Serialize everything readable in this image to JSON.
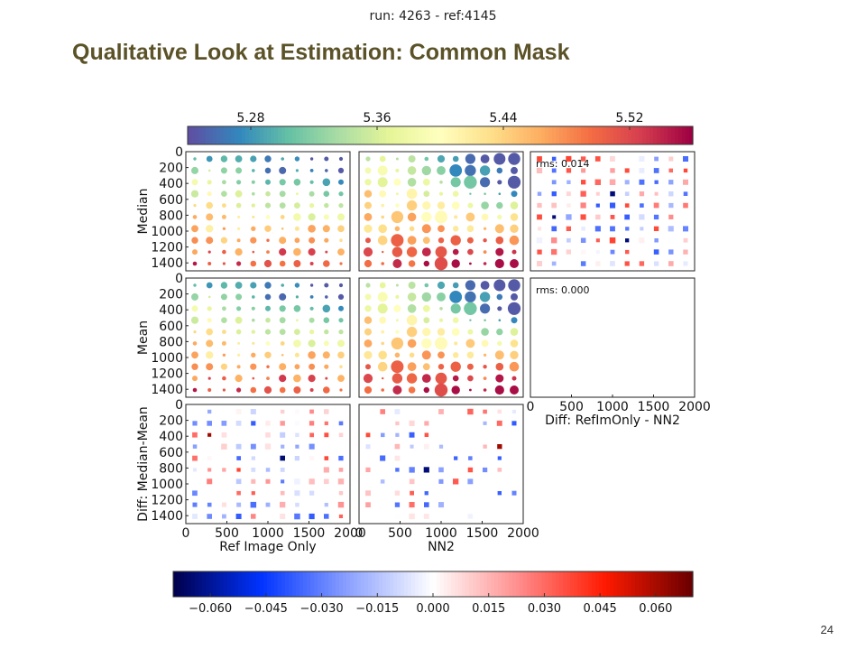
{
  "header": {
    "run_label": "run: 4263 - ref:4145",
    "title": "Qualitative Look at Estimation: Common Mask",
    "page_number": "24"
  },
  "colors": {
    "title": "#5b5228",
    "value_scale": [
      "#5e4fa2",
      "#3288bd",
      "#66c2a5",
      "#abdda4",
      "#e6f598",
      "#ffffbf",
      "#fee08b",
      "#fdae61",
      "#f46d43",
      "#d53e4f",
      "#9e0142"
    ],
    "diff_scale": [
      "#00004d",
      "#0033ff",
      "#8aa0ff",
      "#ffffff",
      "#ff8c8c",
      "#ff1a00",
      "#6b0000"
    ]
  },
  "chart_data": {
    "type": "heatmap",
    "description_type": "scatter grid of estimates with colorbars",
    "top_colorbar": {
      "ticks": [
        "5.28",
        "5.36",
        "5.44",
        "5.52"
      ],
      "range": [
        5.24,
        5.56
      ]
    },
    "bottom_colorbar": {
      "ticks": [
        "−0.060",
        "−0.045",
        "−0.030",
        "−0.015",
        "0.000",
        "0.015",
        "0.030",
        "0.045",
        "0.060"
      ],
      "range": [
        -0.07,
        0.07
      ]
    },
    "row_labels": [
      "Median",
      "Mean",
      "Diff: Median-Mean"
    ],
    "column_labels": [
      "Ref Image Only",
      "NN2",
      "Diff: RefImOnly - NN2"
    ],
    "x_ticks": [
      "0",
      "500",
      "1000",
      "1500",
      "2000"
    ],
    "y_ticks": [
      "0",
      "200",
      "400",
      "600",
      "800",
      "1000",
      "1200",
      "1400"
    ],
    "xlim": [
      0,
      2000
    ],
    "ylim": [
      1500,
      0
    ],
    "panel_annotations": {
      "median_diff": "rms: 0.014",
      "mean_diff": "rms: 0.000"
    },
    "grid_points": {
      "nx": 11,
      "ny": 10,
      "x_step": 200,
      "y_step": 150
    }
  }
}
